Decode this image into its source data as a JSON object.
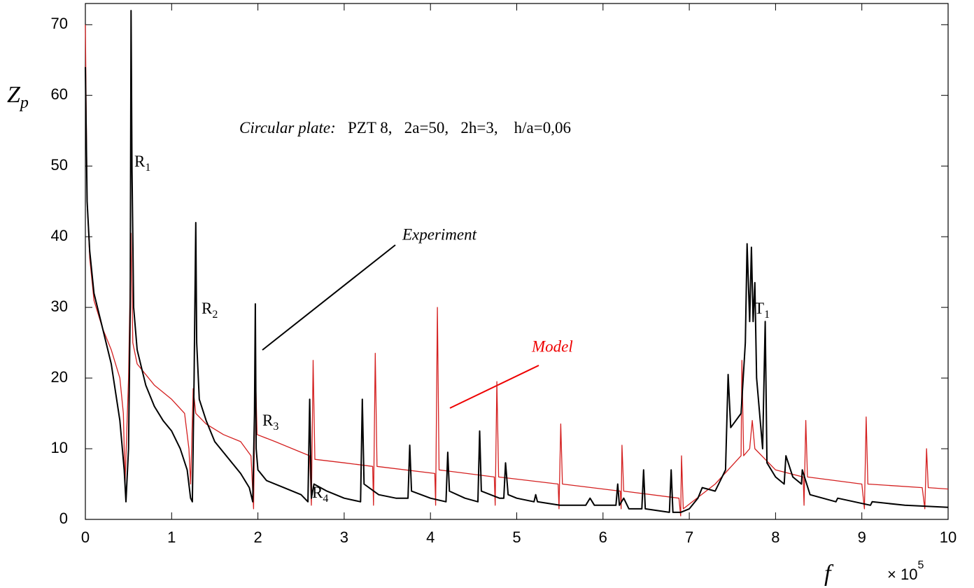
{
  "chart_data": {
    "type": "line",
    "y_label": {
      "text": "Z",
      "sub": "p"
    },
    "x_label": "f",
    "x_multiplier": {
      "text": "× 10",
      "sup": "5"
    },
    "note": {
      "italic": "Circular plate:",
      "text": "PZT 8,   2a=50,   2h=3,    h/a=0,06"
    },
    "annotations": [
      {
        "text": "R",
        "sub": "1"
      },
      {
        "text": "R",
        "sub": "2"
      },
      {
        "text": "R",
        "sub": "3"
      },
      {
        "text": "R",
        "sub": "4"
      },
      {
        "text": "T",
        "sub": "1"
      }
    ],
    "xlim": [
      0,
      10
    ],
    "ylim": [
      0,
      73
    ],
    "xticks": [
      0,
      1,
      2,
      3,
      4,
      5,
      6,
      7,
      8,
      9,
      10
    ],
    "yticks": [
      0,
      10,
      20,
      30,
      40,
      50,
      60,
      70
    ],
    "series": [
      {
        "name": "Experiment",
        "color": "#000000",
        "x": [
          0,
          0.02,
          0.05,
          0.1,
          0.2,
          0.3,
          0.4,
          0.45,
          0.47,
          0.5,
          0.52,
          0.53,
          0.54,
          0.56,
          0.6,
          0.7,
          0.8,
          0.9,
          1.0,
          1.1,
          1.18,
          1.22,
          1.24,
          1.26,
          1.28,
          1.29,
          1.32,
          1.4,
          1.5,
          1.6,
          1.7,
          1.8,
          1.9,
          1.94,
          1.96,
          1.97,
          1.98,
          2.0,
          2.1,
          2.3,
          2.5,
          2.58,
          2.6,
          2.62,
          2.65,
          2.8,
          3.0,
          3.19,
          3.21,
          3.23,
          3.4,
          3.6,
          3.74,
          3.76,
          3.78,
          4.0,
          4.18,
          4.2,
          4.22,
          4.4,
          4.55,
          4.57,
          4.59,
          4.8,
          4.85,
          4.87,
          4.9,
          5.0,
          5.2,
          5.22,
          5.24,
          5.5,
          5.8,
          5.85,
          5.9,
          6.15,
          6.17,
          6.19,
          6.24,
          6.3,
          6.45,
          6.47,
          6.49,
          6.77,
          6.79,
          6.81,
          6.9,
          7.0,
          7.1,
          7.15,
          7.3,
          7.42,
          7.45,
          7.48,
          7.6,
          7.65,
          7.67,
          7.7,
          7.72,
          7.74,
          7.76,
          7.78,
          7.85,
          7.88,
          7.9,
          8.0,
          8.1,
          8.12,
          8.2,
          8.3,
          8.31,
          8.4,
          8.7,
          8.72,
          9.1,
          9.12,
          9.5,
          10.0
        ],
        "values": [
          64,
          45,
          38,
          32,
          27,
          22,
          14,
          7,
          2.5,
          10,
          30,
          72,
          50,
          30,
          24,
          19,
          16,
          14,
          12.5,
          10,
          7,
          3,
          2.5,
          20,
          42,
          25,
          17,
          14,
          11,
          9.5,
          8,
          6.5,
          4.5,
          2.5,
          15,
          30.5,
          10,
          7,
          5.5,
          4.5,
          3.5,
          2.5,
          17,
          3,
          5,
          4,
          3,
          2.5,
          17,
          5,
          3.5,
          3,
          3,
          10.5,
          4,
          3,
          2.5,
          9.5,
          4,
          3,
          2.5,
          12.5,
          4,
          3,
          3,
          8,
          3.5,
          3,
          2.5,
          3.5,
          2.5,
          2,
          2,
          3,
          2,
          2,
          5,
          2,
          3,
          1.5,
          1.5,
          7,
          1.5,
          1,
          7,
          1,
          1,
          1.5,
          3,
          4.5,
          4,
          7,
          20.5,
          13,
          15,
          25,
          39,
          28,
          38.5,
          28,
          33.5,
          20,
          10,
          28,
          8,
          6,
          5,
          9,
          6,
          5,
          7,
          3.5,
          2.5,
          3,
          2,
          2.5,
          2,
          1.7
        ]
      },
      {
        "name": "Model",
        "color": "#d42020",
        "x": [
          0,
          0.02,
          0.05,
          0.1,
          0.2,
          0.3,
          0.4,
          0.44,
          0.46,
          0.5,
          0.53,
          0.55,
          0.6,
          0.8,
          1.0,
          1.15,
          1.2,
          1.22,
          1.25,
          1.28,
          1.4,
          1.6,
          1.8,
          1.92,
          1.95,
          1.97,
          1.99,
          2.2,
          2.5,
          2.6,
          2.62,
          2.64,
          2.66,
          3.0,
          3.33,
          3.34,
          3.36,
          3.38,
          4.05,
          4.06,
          4.08,
          4.1,
          4.74,
          4.75,
          4.77,
          4.79,
          5.48,
          5.49,
          5.51,
          5.53,
          6.2,
          6.21,
          6.22,
          6.24,
          6.88,
          6.9,
          6.91,
          6.93,
          7.3,
          7.6,
          7.61,
          7.63,
          7.7,
          7.73,
          7.76,
          8.0,
          8.32,
          8.33,
          8.35,
          8.37,
          9.0,
          9.03,
          9.05,
          9.07,
          9.7,
          9.73,
          9.75,
          9.77,
          10.0
        ],
        "values": [
          70,
          45,
          37,
          31,
          27,
          24,
          20,
          15,
          5,
          20,
          40.5,
          25,
          22,
          19,
          17,
          15,
          10,
          5,
          18.5,
          15,
          13.5,
          12,
          11,
          9,
          1.5,
          22,
          12,
          11,
          9.5,
          9,
          2,
          22.5,
          8.5,
          8,
          7.5,
          2,
          23.5,
          7.5,
          6.5,
          2,
          30,
          7,
          6,
          2,
          19.5,
          6,
          5,
          1.5,
          13.5,
          5,
          4,
          1.5,
          10.5,
          4,
          3,
          0.5,
          9,
          1.5,
          5,
          9,
          22.5,
          9,
          10,
          14,
          10,
          7,
          6,
          2,
          14,
          6,
          5,
          1.5,
          14.5,
          5,
          4.5,
          1.5,
          10,
          4.5,
          4.3
        ]
      }
    ]
  }
}
